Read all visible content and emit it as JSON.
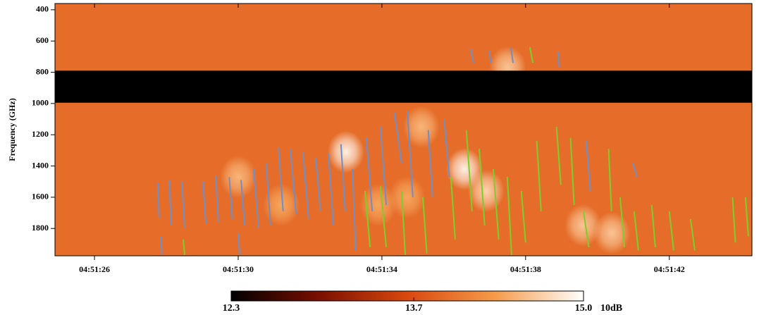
{
  "chart_data": {
    "type": "spectrogram",
    "y_label": "Frequency (GHz)",
    "y_inverted": true,
    "ylim": [
      360,
      1975
    ],
    "yticks": [
      400,
      600,
      800,
      1000,
      1200,
      1400,
      1600,
      1800
    ],
    "xlim": [
      24.9,
      44.3
    ],
    "xticks": [
      {
        "value": 26,
        "label": "04:51:26"
      },
      {
        "value": 30,
        "label": "04:51:30"
      },
      {
        "value": 34,
        "label": "04:51:34"
      },
      {
        "value": 38,
        "label": "04:51:38"
      },
      {
        "value": 42,
        "label": "04:51:42"
      }
    ],
    "colormap": [
      "#000000",
      "#7a1000",
      "#d9480f",
      "#f59b4a",
      "#ffffff"
    ],
    "clim": [
      12.3,
      15
    ],
    "colorbar_ticks": [
      12.3,
      13.7,
      {
        "value": 15,
        "label": "15.0"
      }
    ],
    "colorbar_unit": "10dB",
    "background_level": 13.95,
    "masked_band": [
      790,
      995
    ],
    "patches": [
      [
        33.0,
        1310,
        14.9
      ],
      [
        36.3,
        1420,
        14.9
      ],
      [
        36.9,
        1560,
        14.7
      ],
      [
        35.1,
        1150,
        14.5
      ],
      [
        39.6,
        1780,
        14.6
      ],
      [
        40.4,
        1830,
        14.6
      ],
      [
        30.0,
        1470,
        14.5
      ],
      [
        34.7,
        1600,
        14.4
      ],
      [
        37.5,
        770,
        14.6
      ],
      [
        31.2,
        1650,
        14.4
      ],
      [
        33.9,
        1650,
        14.4
      ]
    ],
    "series": [
      {
        "color": "#6f8fc8",
        "segments": [
          [
            27.76,
            1510,
            27.8,
            1730
          ],
          [
            28.08,
            1490,
            28.14,
            1780
          ],
          [
            28.43,
            1500,
            28.51,
            1800
          ],
          [
            29.02,
            1500,
            29.1,
            1770
          ],
          [
            29.37,
            1460,
            29.45,
            1760
          ],
          [
            29.75,
            1470,
            29.84,
            1740
          ],
          [
            30.08,
            1490,
            30.18,
            1780
          ],
          [
            30.43,
            1420,
            30.57,
            1800
          ],
          [
            30.78,
            1380,
            30.9,
            1780
          ],
          [
            31.12,
            1280,
            31.25,
            1690
          ],
          [
            31.45,
            1290,
            31.61,
            1710
          ],
          [
            31.8,
            1310,
            31.96,
            1740
          ],
          [
            32.16,
            1350,
            32.29,
            1690
          ],
          [
            32.51,
            1320,
            32.65,
            1780
          ],
          [
            32.86,
            1260,
            32.98,
            1690
          ],
          [
            33.18,
            1420,
            33.27,
            1940
          ],
          [
            33.57,
            1220,
            33.73,
            1690
          ],
          [
            33.96,
            1150,
            34.12,
            1650
          ],
          [
            34.35,
            1060,
            34.55,
            1380
          ],
          [
            34.71,
            1050,
            34.86,
            1600
          ],
          [
            35.29,
            1170,
            35.41,
            1600
          ],
          [
            35.73,
            1100,
            35.88,
            1470
          ],
          [
            36.47,
            650,
            36.55,
            740
          ],
          [
            36.98,
            660,
            37.04,
            740
          ],
          [
            37.59,
            640,
            37.65,
            740
          ],
          [
            38.9,
            670,
            38.94,
            770
          ],
          [
            39.69,
            1240,
            39.8,
            1560
          ],
          [
            40.98,
            1380,
            41.1,
            1470
          ],
          [
            27.84,
            1850,
            27.88,
            1970
          ],
          [
            30.0,
            1830,
            30.04,
            1970
          ]
        ]
      },
      {
        "color": "#7ccf2a",
        "segments": [
          [
            28.47,
            1870,
            28.51,
            1970
          ],
          [
            33.53,
            1560,
            33.67,
            1920
          ],
          [
            33.96,
            1530,
            34.12,
            1920
          ],
          [
            34.55,
            1560,
            34.65,
            1970
          ],
          [
            35.14,
            1600,
            35.25,
            1960
          ],
          [
            35.92,
            1470,
            36.04,
            1870
          ],
          [
            36.35,
            1170,
            36.51,
            1690
          ],
          [
            36.71,
            1290,
            36.86,
            1780
          ],
          [
            37.1,
            1420,
            37.25,
            1870
          ],
          [
            37.49,
            1470,
            37.61,
            1970
          ],
          [
            37.88,
            1560,
            38.0,
            1890
          ],
          [
            38.12,
            640,
            38.2,
            740
          ],
          [
            38.31,
            1240,
            38.43,
            1690
          ],
          [
            38.86,
            1150,
            38.98,
            1520
          ],
          [
            39.25,
            1220,
            39.35,
            1650
          ],
          [
            39.61,
            1690,
            39.76,
            1920
          ],
          [
            40.31,
            1290,
            40.39,
            1690
          ],
          [
            40.63,
            1600,
            40.75,
            1920
          ],
          [
            41.02,
            1690,
            41.14,
            1940
          ],
          [
            41.51,
            1650,
            41.61,
            1920
          ],
          [
            42.0,
            1690,
            42.12,
            1940
          ],
          [
            42.59,
            1740,
            42.71,
            1940
          ],
          [
            43.76,
            1600,
            43.84,
            1890
          ],
          [
            44.12,
            1600,
            44.2,
            1850
          ]
        ]
      }
    ]
  }
}
